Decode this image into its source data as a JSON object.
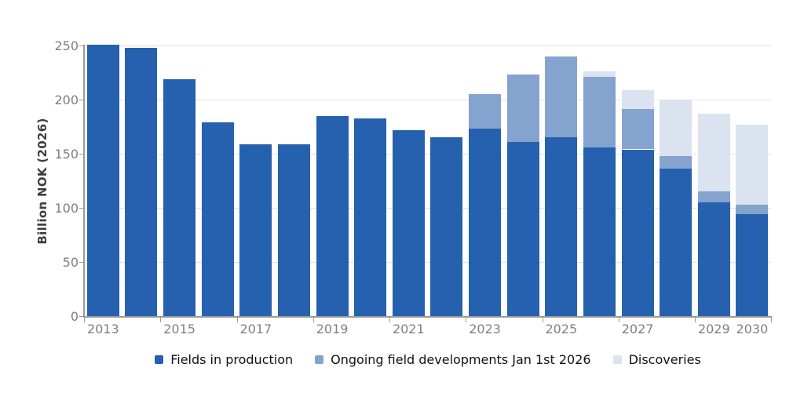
{
  "chart_data": {
    "type": "bar",
    "stacked": true,
    "title": "",
    "xlabel": "",
    "ylabel": "Billion NOK (2026)",
    "ylim": [
      0,
      250
    ],
    "yticks": [
      0,
      50,
      100,
      150,
      200,
      250
    ],
    "grid": true,
    "legend_position": "bottom",
    "categories": [
      "2013",
      "2014",
      "2015",
      "2016",
      "2017",
      "2018",
      "2019",
      "2020",
      "2021",
      "2022",
      "2023",
      "2024",
      "2025",
      "2026",
      "2027",
      "2028",
      "2029",
      "2030"
    ],
    "xticks": [
      {
        "slot": 0,
        "label": "2013"
      },
      {
        "slot": 2,
        "label": "2015"
      },
      {
        "slot": 4,
        "label": "2017"
      },
      {
        "slot": 6,
        "label": "2019"
      },
      {
        "slot": 8,
        "label": "2021"
      },
      {
        "slot": 10,
        "label": "2023"
      },
      {
        "slot": 12,
        "label": "2025"
      },
      {
        "slot": 14,
        "label": "2027"
      },
      {
        "slot": 16,
        "label": "2029"
      },
      {
        "slot": 17,
        "label": "2030"
      }
    ],
    "series": [
      {
        "name": "Fields in production",
        "color": "#2561ae",
        "values": [
          251,
          248,
          219,
          179,
          159,
          159,
          185,
          183,
          172,
          165,
          173,
          161,
          165,
          156,
          154,
          136,
          105,
          94
        ]
      },
      {
        "name": "Ongoing field developments Jan 1st 2026",
        "color": "#85a3cf",
        "values": [
          0,
          0,
          0,
          0,
          0,
          0,
          0,
          0,
          0,
          0,
          32,
          62,
          75,
          65,
          37,
          12,
          10,
          9
        ]
      },
      {
        "name": "Discoveries",
        "color": "#dbe2f0",
        "values": [
          0,
          0,
          0,
          0,
          0,
          0,
          0,
          0,
          0,
          0,
          0,
          0,
          0,
          5,
          18,
          51,
          72,
          74
        ]
      }
    ]
  },
  "colors": {
    "background": "#ffffff",
    "gridline": "#e1e1e1",
    "axis_line": "#9a9a9a",
    "tick_label": "#7f7f7f",
    "axis_title": "#3d3d3d",
    "legend_text": "#111111"
  }
}
